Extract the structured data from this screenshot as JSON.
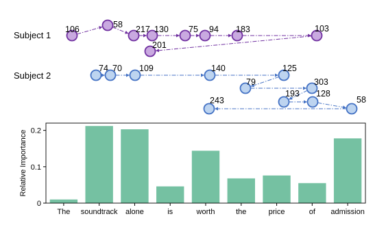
{
  "scanpath": {
    "subjects": [
      {
        "label": "Subject 1",
        "color": "#7030a0",
        "fill": "#c9a9e0",
        "fixations": [
          {
            "value": "106"
          },
          {
            "value": "58"
          },
          {
            "value": "217"
          },
          {
            "value": "130"
          },
          {
            "value": "75"
          },
          {
            "value": "94"
          },
          {
            "value": "183"
          },
          {
            "value": "103"
          },
          {
            "value": "201"
          }
        ]
      },
      {
        "label": "Subject 2",
        "color": "#4472c4",
        "fill": "#bdd4f0",
        "fixations": [
          {
            "value": "74"
          },
          {
            "value": "70"
          },
          {
            "value": "109"
          },
          {
            "value": "140"
          },
          {
            "value": "125"
          },
          {
            "value": "79"
          },
          {
            "value": "303"
          },
          {
            "value": "193"
          },
          {
            "value": "128"
          },
          {
            "value": "58"
          },
          {
            "value": "243"
          }
        ]
      }
    ]
  },
  "chart_data": {
    "type": "bar",
    "categories": [
      "The",
      "soundtrack",
      "alone",
      "is",
      "worth",
      "the",
      "price",
      "of",
      "admission"
    ],
    "values": [
      0.01,
      0.212,
      0.203,
      0.046,
      0.144,
      0.068,
      0.076,
      0.055,
      0.178
    ],
    "ylabel": "Relative Importance",
    "ylim": [
      0,
      0.22
    ],
    "yticks": [
      0,
      0.1,
      0.2
    ],
    "ytick_labels": [
      "0",
      "0.1",
      "0.2"
    ],
    "bar_color": "#75c1a2",
    "grid": false
  }
}
